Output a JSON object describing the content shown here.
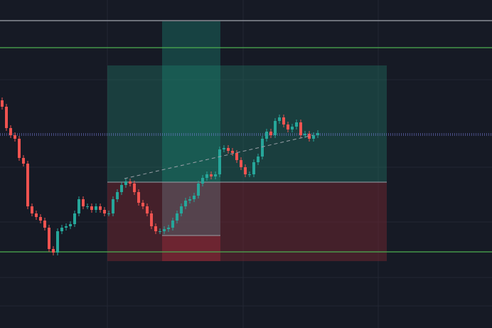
{
  "chart_data": {
    "type": "candlestick",
    "up_color": "#26a69a",
    "down_color": "#ef5350",
    "ylim": [
      0,
      461
    ],
    "open": [
      320,
      311,
      281,
      271,
      266,
      239,
      231,
      171,
      161,
      156,
      151,
      141,
      111,
      106,
      136,
      141,
      143,
      146,
      161,
      181,
      171,
      171,
      166,
      171,
      166,
      161,
      161,
      181,
      191,
      201,
      206,
      203,
      191,
      176,
      171,
      161,
      143,
      136,
      136,
      139,
      141,
      151,
      161,
      171,
      179,
      181,
      186,
      203,
      211,
      216,
      213,
      216,
      251,
      253,
      249,
      246,
      236,
      226,
      216,
      216,
      233,
      241,
      266,
      276,
      271,
      291,
      296,
      286,
      279,
      283,
      289,
      271,
      273,
      266,
      271
    ],
    "high": [
      324,
      315,
      285,
      275,
      270,
      243,
      235,
      175,
      165,
      160,
      155,
      145,
      115,
      140,
      145,
      147,
      150,
      165,
      185,
      185,
      175,
      175,
      175,
      175,
      170,
      165,
      185,
      195,
      205,
      210,
      210,
      207,
      195,
      180,
      175,
      165,
      147,
      140,
      143,
      145,
      155,
      165,
      175,
      183,
      185,
      190,
      207,
      215,
      220,
      220,
      220,
      255,
      257,
      257,
      253,
      250,
      240,
      230,
      220,
      237,
      245,
      270,
      280,
      280,
      295,
      300,
      300,
      290,
      287,
      293,
      293,
      277,
      277,
      275,
      278
    ],
    "low": [
      307,
      277,
      267,
      262,
      235,
      227,
      167,
      157,
      152,
      147,
      137,
      107,
      102,
      102,
      132,
      137,
      139,
      142,
      157,
      167,
      167,
      162,
      162,
      162,
      157,
      157,
      157,
      177,
      187,
      197,
      199,
      187,
      172,
      167,
      157,
      139,
      132,
      132,
      132,
      135,
      137,
      147,
      157,
      167,
      175,
      177,
      182,
      199,
      207,
      209,
      209,
      212,
      247,
      245,
      242,
      232,
      222,
      212,
      212,
      212,
      229,
      237,
      262,
      267,
      267,
      287,
      282,
      275,
      275,
      279,
      267,
      267,
      262,
      262,
      267
    ],
    "close": [
      311,
      281,
      271,
      266,
      239,
      231,
      171,
      161,
      156,
      151,
      141,
      111,
      106,
      136,
      141,
      143,
      146,
      161,
      181,
      171,
      171,
      166,
      171,
      166,
      161,
      161,
      181,
      191,
      201,
      206,
      203,
      191,
      176,
      171,
      161,
      143,
      136,
      136,
      139,
      141,
      151,
      161,
      171,
      179,
      181,
      186,
      203,
      211,
      216,
      213,
      216,
      251,
      253,
      249,
      246,
      236,
      226,
      216,
      216,
      233,
      241,
      266,
      276,
      271,
      291,
      296,
      286,
      279,
      283,
      289,
      271,
      273,
      266,
      271,
      274
    ]
  }
}
